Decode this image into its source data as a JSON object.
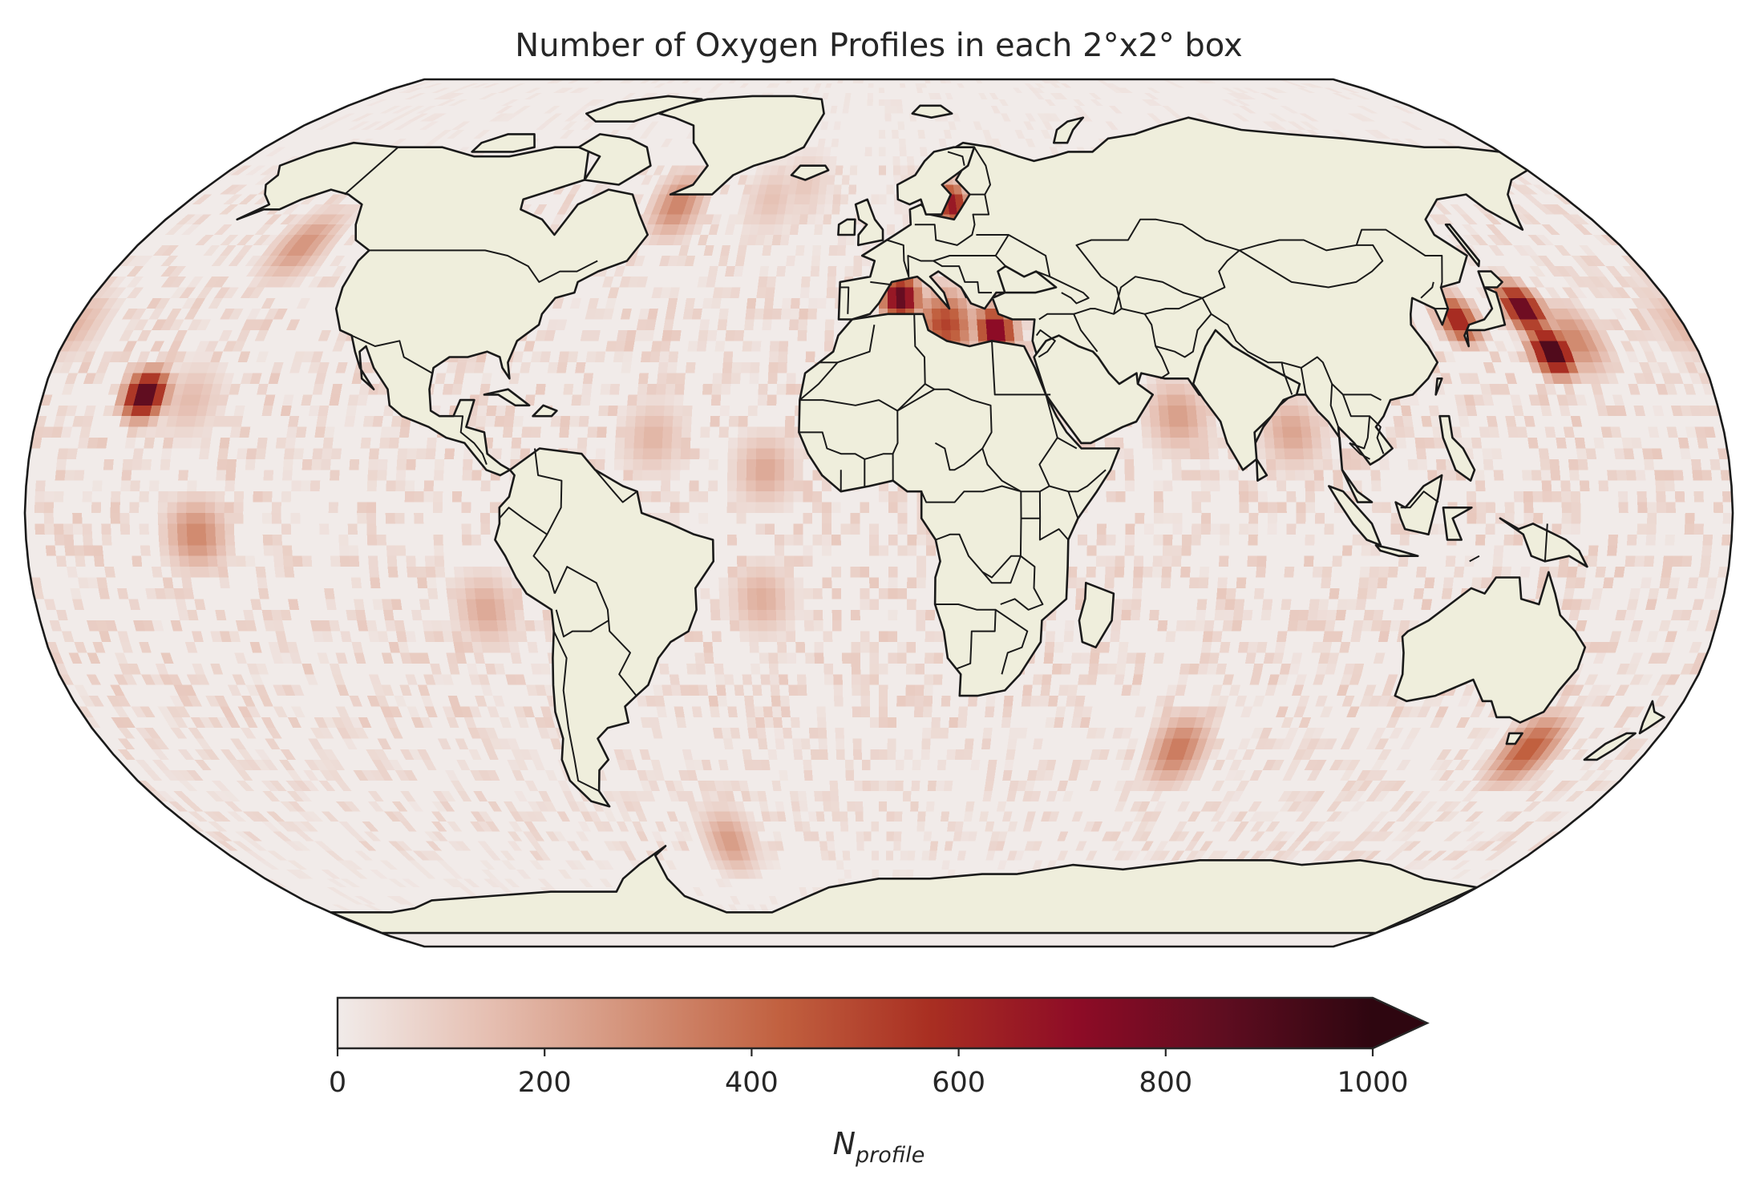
{
  "title": "Number of Oxygen Profiles in each 2°x2° box",
  "colorbar": {
    "label_main": "N",
    "label_sub": "profile",
    "ticks": [
      "0",
      "200",
      "400",
      "600",
      "800",
      "1000"
    ],
    "min": 0,
    "max": 1000,
    "extend": "max",
    "colors": [
      "#f1ebe9",
      "#e6c0b3",
      "#d39178",
      "#c1603f",
      "#a92f22",
      "#8e0c26",
      "#5e0d20",
      "#2e0610"
    ]
  },
  "map": {
    "projection": "Robinson",
    "ocean_color": "#f1ebe9",
    "land_color": "#efeedc",
    "coastline_color": "#1a1a1a"
  },
  "chart_data": {
    "type": "heatmap",
    "title": "Number of Oxygen Profiles in each 2°x2° box",
    "xlabel": "",
    "ylabel": "",
    "grid_resolution_deg": 2,
    "colorbar_label": "N_profile",
    "value_range": [
      0,
      1000
    ],
    "hotspots": [
      {
        "lon": -158,
        "lat": 22,
        "value": 950
      },
      {
        "lon": -148,
        "lat": 21,
        "value": 160
      },
      {
        "lon": -140,
        "lat": 50,
        "value": 280
      },
      {
        "lon": -144,
        "lat": -4,
        "value": 320
      },
      {
        "lon": -28,
        "lat": 59,
        "value": 140
      },
      {
        "lon": -20,
        "lat": 62,
        "value": 120
      },
      {
        "lon": -52,
        "lat": 58,
        "value": 330
      },
      {
        "lon": -48,
        "lat": 14,
        "value": 180
      },
      {
        "lon": -24,
        "lat": 8,
        "value": 220
      },
      {
        "lon": -25,
        "lat": -16,
        "value": 200
      },
      {
        "lon": -84,
        "lat": -18,
        "value": 220
      },
      {
        "lon": 5,
        "lat": 40,
        "value": 880
      },
      {
        "lon": 15,
        "lat": 35,
        "value": 520
      },
      {
        "lon": 26,
        "lat": 34,
        "value": 800
      },
      {
        "lon": 34,
        "lat": 43,
        "value": 330
      },
      {
        "lon": 19,
        "lat": 58,
        "value": 700
      },
      {
        "lon": 64,
        "lat": 18,
        "value": 250
      },
      {
        "lon": 88,
        "lat": 15,
        "value": 230
      },
      {
        "lon": 130,
        "lat": 36,
        "value": 650
      },
      {
        "lon": 146,
        "lat": 38,
        "value": 900
      },
      {
        "lon": 148,
        "lat": 30,
        "value": 1000
      },
      {
        "lon": 154,
        "lat": 32,
        "value": 320
      },
      {
        "lon": 124,
        "lat": -28,
        "value": 620
      },
      {
        "lon": 70,
        "lat": -44,
        "value": 360
      },
      {
        "lon": 152,
        "lat": -44,
        "value": 450
      },
      {
        "lon": 180,
        "lat": 35,
        "value": 180
      },
      {
        "lon": -40,
        "lat": -62,
        "value": 260
      }
    ]
  }
}
